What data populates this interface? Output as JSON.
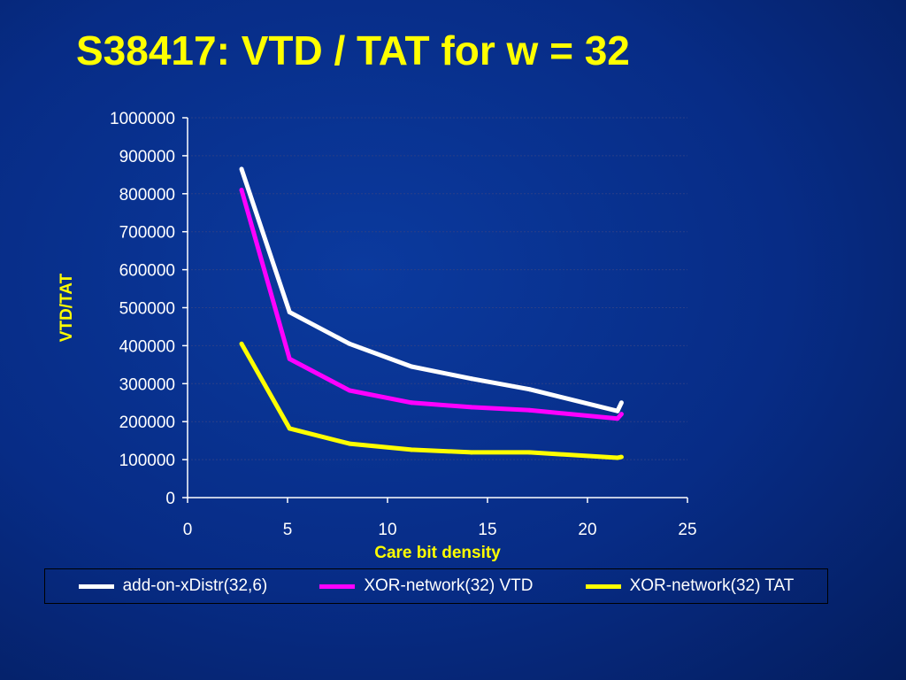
{
  "slide": {
    "title": "S38417: VTD / TAT for w = 32"
  },
  "chart_data": {
    "type": "line",
    "title": "",
    "xlabel": "Care bit density",
    "ylabel": "VTD/TAT",
    "xlim": [
      0,
      25
    ],
    "ylim": [
      0,
      1000000
    ],
    "x_ticks": [
      0,
      5,
      10,
      15,
      20,
      25
    ],
    "y_ticks": [
      0,
      100000,
      200000,
      300000,
      400000,
      500000,
      600000,
      700000,
      800000,
      900000,
      1000000
    ],
    "grid": "horizontal dotted",
    "legend_position": "bottom",
    "series": [
      {
        "name": "add-on-xDistr(32,6)",
        "color": "#ffffff",
        "x": [
          2.7,
          5.1,
          8.1,
          11.2,
          14.2,
          17.1,
          21.5,
          21.7
        ],
        "y": [
          865000,
          488000,
          405000,
          345000,
          313000,
          285000,
          228000,
          250000
        ]
      },
      {
        "name": "XOR-network(32) VTD",
        "color": "#ff00ff",
        "x": [
          2.7,
          5.1,
          8.1,
          11.2,
          14.2,
          17.1,
          21.5,
          21.7
        ],
        "y": [
          810000,
          365000,
          282000,
          250000,
          238000,
          230000,
          208000,
          220000
        ]
      },
      {
        "name": "XOR-network(32) TAT",
        "color": "#ffff00",
        "x": [
          2.7,
          5.1,
          8.1,
          11.2,
          14.2,
          17.1,
          21.5,
          21.7
        ],
        "y": [
          405000,
          182000,
          142000,
          126000,
          119000,
          119000,
          105000,
          107000
        ]
      }
    ]
  }
}
